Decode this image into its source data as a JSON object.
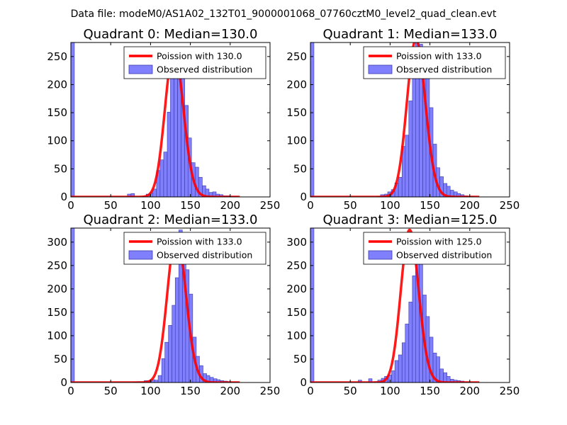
{
  "figure": {
    "suptitle": "Data file: modeM0/AS1A02_132T01_9000001068_07760cztM0_level2_quad_clean.evt",
    "colors": {
      "bar_fill": "#8080ff",
      "bar_edge": "#3a3aa8",
      "poisson_line": "#ff0000",
      "legend_edge": "#000000"
    }
  },
  "chart_data": [
    {
      "type": "bar",
      "title": "Quadrant 0: Median=130.0",
      "xlim": [
        0,
        250
      ],
      "ylim": [
        0,
        275
      ],
      "xticks": [
        0,
        50,
        100,
        150,
        200,
        250
      ],
      "yticks": [
        0,
        50,
        100,
        150,
        200,
        250
      ],
      "bin_width": 4.4,
      "zero_bin": {
        "x": 0,
        "count": 275
      },
      "bins_x": [
        71,
        75.5,
        90,
        94.5,
        99,
        103,
        107.5,
        112,
        116.5,
        121,
        125,
        129.5,
        134,
        138.5,
        143,
        147,
        151.5,
        156,
        160.5,
        165,
        169,
        173.5,
        178,
        182,
        186.5,
        191,
        195.5,
        200,
        204.5
      ],
      "bins_count": [
        5,
        6,
        1,
        5,
        7,
        14,
        47,
        66,
        80,
        151,
        233,
        262,
        236,
        241,
        163,
        105,
        61,
        53,
        35,
        20,
        14,
        8,
        9,
        5,
        4,
        2,
        2,
        1,
        1
      ],
      "poisson_mean": 130.0,
      "poisson_scale": 263,
      "series": [
        {
          "name": "Poission with 130.0"
        },
        {
          "name": "Observed distribution"
        }
      ],
      "legend_position": "upper right"
    },
    {
      "type": "bar",
      "title": "Quadrant 1: Median=133.0",
      "xlim": [
        0,
        250
      ],
      "ylim": [
        0,
        275
      ],
      "xticks": [
        0,
        50,
        100,
        150,
        200,
        250
      ],
      "yticks": [
        0,
        50,
        100,
        150,
        200,
        250
      ],
      "bin_width": 4.4,
      "zero_bin": {
        "x": 0,
        "count": 275
      },
      "bins_x": [
        84,
        88,
        93,
        97,
        101.5,
        106,
        110.5,
        115,
        119,
        123.5,
        128,
        132,
        136.5,
        141,
        145,
        149.5,
        154,
        158,
        162.5,
        167,
        171,
        175.5,
        180,
        184,
        188.5,
        193,
        197,
        201
      ],
      "bins_count": [
        1,
        4,
        5,
        9,
        13,
        25,
        35,
        90,
        110,
        171,
        230,
        284,
        272,
        258,
        242,
        159,
        94,
        52,
        36,
        24,
        19,
        12,
        9,
        6,
        4,
        2,
        1,
        1
      ],
      "poisson_mean": 133.0,
      "poisson_scale": 280,
      "series": [
        {
          "name": "Poission with 133.0"
        },
        {
          "name": "Observed distribution"
        }
      ],
      "legend_position": "upper right"
    },
    {
      "type": "bar",
      "title": "Quadrant 2: Median=133.0",
      "xlim": [
        0,
        250
      ],
      "ylim": [
        0,
        330
      ],
      "xticks": [
        0,
        50,
        100,
        150,
        200,
        250
      ],
      "yticks": [
        0,
        50,
        100,
        150,
        200,
        250,
        300
      ],
      "bin_width": 4.4,
      "zero_bin": {
        "x": 0,
        "count": 330
      },
      "bins_x": [
        79,
        83.5,
        88,
        92,
        96.5,
        101,
        105,
        109.5,
        114,
        118,
        122.5,
        127,
        131,
        135.5,
        140,
        144,
        148.5,
        153,
        157,
        161.5,
        166,
        170,
        174.5,
        179,
        183,
        187.5,
        192,
        196,
        200.5,
        205
      ],
      "bins_count": [
        1,
        2,
        1,
        4,
        4,
        6,
        5,
        15,
        51,
        86,
        122,
        165,
        224,
        326,
        308,
        241,
        189,
        97,
        56,
        36,
        19,
        15,
        11,
        8,
        6,
        4,
        3,
        2,
        1,
        1
      ],
      "poisson_mean": 133.0,
      "poisson_scale": 318,
      "series": [
        {
          "name": "Poission with 133.0"
        },
        {
          "name": "Observed distribution"
        }
      ],
      "legend_position": "upper right"
    },
    {
      "type": "bar",
      "title": "Quadrant 3: Median=125.0",
      "xlim": [
        0,
        250
      ],
      "ylim": [
        0,
        330
      ],
      "xticks": [
        0,
        50,
        100,
        150,
        200,
        250
      ],
      "yticks": [
        0,
        50,
        100,
        150,
        200,
        250,
        300
      ],
      "bin_width": 4.4,
      "zero_bin": {
        "x": 0,
        "count": 330
      },
      "bins_x": [
        60,
        73,
        80,
        84.5,
        89,
        93,
        97.5,
        102,
        106,
        110.5,
        115,
        119,
        123.5,
        128,
        132,
        136.5,
        141,
        145,
        149.5,
        154,
        158,
        162.5,
        167,
        171,
        175.5,
        180,
        184,
        188.5,
        193
      ],
      "bins_count": [
        5,
        8,
        2,
        5,
        9,
        13,
        16,
        25,
        47,
        59,
        85,
        125,
        172,
        228,
        289,
        266,
        187,
        141,
        97,
        63,
        55,
        29,
        21,
        13,
        7,
        5,
        4,
        3,
        1
      ],
      "poisson_mean": 125.0,
      "poisson_scale": 326,
      "series": [
        {
          "name": "Poission with 125.0"
        },
        {
          "name": "Observed distribution"
        }
      ],
      "legend_position": "upper right"
    }
  ]
}
